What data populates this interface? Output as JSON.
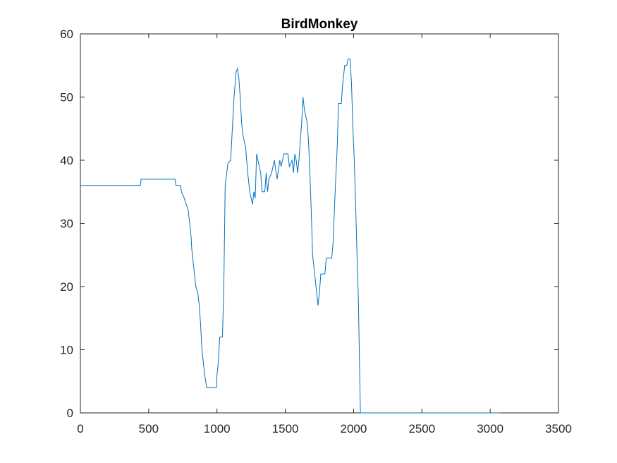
{
  "chart_data": {
    "type": "line",
    "title": "BirdMonkey",
    "x": [
      0,
      440,
      444,
      692,
      700,
      733,
      740,
      760,
      775,
      790,
      800,
      810,
      815,
      825,
      835,
      845,
      860,
      870,
      880,
      890,
      900,
      910,
      925,
      996,
      1000,
      1010,
      1020,
      1040,
      1050,
      1060,
      1080,
      1100,
      1110,
      1125,
      1140,
      1150,
      1160,
      1170,
      1180,
      1190,
      1210,
      1225,
      1240,
      1260,
      1270,
      1280,
      1290,
      1300,
      1320,
      1330,
      1350,
      1360,
      1370,
      1380,
      1400,
      1420,
      1440,
      1460,
      1470,
      1490,
      1520,
      1530,
      1550,
      1560,
      1570,
      1580,
      1590,
      1600,
      1620,
      1630,
      1640,
      1660,
      1670,
      1680,
      1690,
      1700,
      1715,
      1730,
      1740,
      1750,
      1760,
      1790,
      1800,
      1840,
      1850,
      1865,
      1880,
      1890,
      1910,
      1920,
      1935,
      1950,
      1960,
      1975,
      1985,
      1995,
      2005,
      2015,
      2025,
      2035,
      2050,
      3070
    ],
    "series": [
      {
        "color": "#0072bd",
        "values": [
          36,
          36,
          37,
          37,
          36,
          36,
          35,
          34,
          33,
          32,
          30,
          28,
          26,
          24,
          22,
          20,
          19,
          17,
          14,
          10,
          8,
          6,
          4,
          4,
          6,
          8,
          12,
          12,
          20,
          36,
          39.5,
          40,
          44,
          50,
          54,
          54.5,
          53,
          50,
          46,
          44,
          42,
          38,
          35,
          33,
          35,
          34,
          41,
          40,
          38,
          35,
          35,
          38,
          35,
          37,
          38,
          40,
          37,
          40,
          39,
          41,
          41,
          39,
          40,
          38,
          41,
          40,
          38,
          40,
          46,
          50,
          48,
          46,
          43,
          38,
          32,
          25,
          22,
          19,
          17,
          19,
          22,
          22,
          24.5,
          24.5,
          27,
          35,
          42,
          49,
          49,
          52,
          55,
          55,
          56,
          56,
          52,
          45,
          40,
          33,
          25,
          18,
          0,
          0
        ]
      }
    ],
    "xlim": [
      0,
      3500
    ],
    "xticks": [
      0,
      500,
      1000,
      1500,
      2000,
      2500,
      3000,
      3500
    ],
    "ylim": [
      0,
      60
    ],
    "yticks": [
      0,
      10,
      20,
      30,
      40,
      50,
      60
    ],
    "grid": false
  }
}
